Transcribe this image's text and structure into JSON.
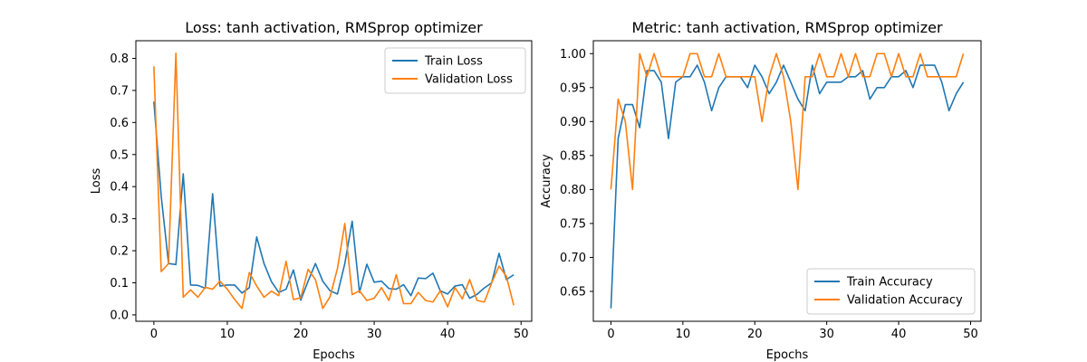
{
  "chart_data": [
    {
      "type": "line",
      "title": "Loss: tanh activation, RMSprop optimizer",
      "xlabel": "Epochs",
      "ylabel": "Loss",
      "xlim": [
        -2.45,
        51.45
      ],
      "ylim": [
        -0.02,
        0.855
      ],
      "xticks": [
        0,
        10,
        20,
        30,
        40,
        50
      ],
      "yticks": [
        0.0,
        0.1,
        0.2,
        0.3,
        0.4,
        0.5,
        0.6,
        0.7,
        0.8
      ],
      "ytick_labels": [
        "0.0",
        "0.1",
        "0.2",
        "0.3",
        "0.4",
        "0.5",
        "0.6",
        "0.7",
        "0.8"
      ],
      "legend_position": "top-right",
      "grid": false,
      "x": [
        0,
        1,
        2,
        3,
        4,
        5,
        6,
        7,
        8,
        9,
        10,
        11,
        12,
        13,
        14,
        15,
        16,
        17,
        18,
        19,
        20,
        21,
        22,
        23,
        24,
        25,
        26,
        27,
        28,
        29,
        30,
        31,
        32,
        33,
        34,
        35,
        36,
        37,
        38,
        39,
        40,
        41,
        42,
        43,
        44,
        45,
        46,
        47,
        48,
        49
      ],
      "series": [
        {
          "name": "Train Loss",
          "color": "#1f77b4",
          "values": [
            0.665,
            0.37,
            0.16,
            0.157,
            0.44,
            0.093,
            0.092,
            0.083,
            0.378,
            0.09,
            0.093,
            0.093,
            0.068,
            0.085,
            0.243,
            0.16,
            0.104,
            0.07,
            0.08,
            0.14,
            0.046,
            0.105,
            0.16,
            0.105,
            0.075,
            0.065,
            0.16,
            0.292,
            0.07,
            0.158,
            0.102,
            0.105,
            0.082,
            0.08,
            0.094,
            0.06,
            0.115,
            0.113,
            0.13,
            0.075,
            0.065,
            0.09,
            0.094,
            0.052,
            0.064,
            0.084,
            0.1,
            0.192,
            0.11,
            0.125
          ]
        },
        {
          "name": "Validation Loss",
          "color": "#ff7f0e",
          "values": [
            0.775,
            0.135,
            0.16,
            0.816,
            0.055,
            0.078,
            0.055,
            0.086,
            0.08,
            0.105,
            0.08,
            0.048,
            0.02,
            0.132,
            0.09,
            0.055,
            0.074,
            0.06,
            0.167,
            0.048,
            0.053,
            0.142,
            0.11,
            0.02,
            0.057,
            0.145,
            0.285,
            0.063,
            0.075,
            0.045,
            0.052,
            0.085,
            0.045,
            0.125,
            0.035,
            0.035,
            0.07,
            0.045,
            0.04,
            0.075,
            0.025,
            0.085,
            0.05,
            0.11,
            0.045,
            0.04,
            0.1,
            0.152,
            0.12,
            0.03
          ]
        }
      ]
    },
    {
      "type": "line",
      "title": "Metric: tanh activation, RMSprop optimizer",
      "xlabel": "Epochs",
      "ylabel": "Accuracy",
      "xlim": [
        -2.45,
        51.45
      ],
      "ylim": [
        0.606,
        1.019
      ],
      "xticks": [
        0,
        10,
        20,
        30,
        40,
        50
      ],
      "yticks": [
        0.65,
        0.7,
        0.75,
        0.8,
        0.85,
        0.9,
        0.95,
        1.0
      ],
      "ytick_labels": [
        "0.65",
        "0.70",
        "0.75",
        "0.80",
        "0.85",
        "0.90",
        "0.95",
        "1.00"
      ],
      "legend_position": "bottom-right",
      "grid": false,
      "x": [
        0,
        1,
        2,
        3,
        4,
        5,
        6,
        7,
        8,
        9,
        10,
        11,
        12,
        13,
        14,
        15,
        16,
        17,
        18,
        19,
        20,
        21,
        22,
        23,
        24,
        25,
        26,
        27,
        28,
        29,
        30,
        31,
        32,
        33,
        34,
        35,
        36,
        37,
        38,
        39,
        40,
        41,
        42,
        43,
        44,
        45,
        46,
        47,
        48,
        49
      ],
      "series": [
        {
          "name": "Train Accuracy",
          "color": "#1f77b4",
          "values": [
            0.625,
            0.875,
            0.925,
            0.925,
            0.891,
            0.975,
            0.975,
            0.958,
            0.875,
            0.958,
            0.966,
            0.966,
            0.983,
            0.958,
            0.916,
            0.95,
            0.966,
            0.966,
            0.966,
            0.95,
            0.983,
            0.966,
            0.941,
            0.958,
            0.983,
            0.958,
            0.933,
            0.916,
            0.983,
            0.941,
            0.958,
            0.958,
            0.958,
            0.966,
            0.966,
            0.975,
            0.933,
            0.95,
            0.95,
            0.966,
            0.966,
            0.975,
            0.95,
            0.983,
            0.983,
            0.983,
            0.958,
            0.916,
            0.941,
            0.958
          ]
        },
        {
          "name": "Validation Accuracy",
          "color": "#ff7f0e",
          "values": [
            0.8,
            0.933,
            0.9,
            0.8,
            1.0,
            0.966,
            1.0,
            0.966,
            0.966,
            0.966,
            0.966,
            1.0,
            1.0,
            0.966,
            0.966,
            1.0,
            0.966,
            0.966,
            0.966,
            0.966,
            0.966,
            0.9,
            0.966,
            1.0,
            0.966,
            0.9,
            0.8,
            0.966,
            0.966,
            1.0,
            0.966,
            0.966,
            1.0,
            0.966,
            1.0,
            0.966,
            0.966,
            1.0,
            1.0,
            0.966,
            1.0,
            0.966,
            0.966,
            1.0,
            0.966,
            0.966,
            0.966,
            0.966,
            0.966,
            1.0
          ]
        }
      ]
    }
  ]
}
